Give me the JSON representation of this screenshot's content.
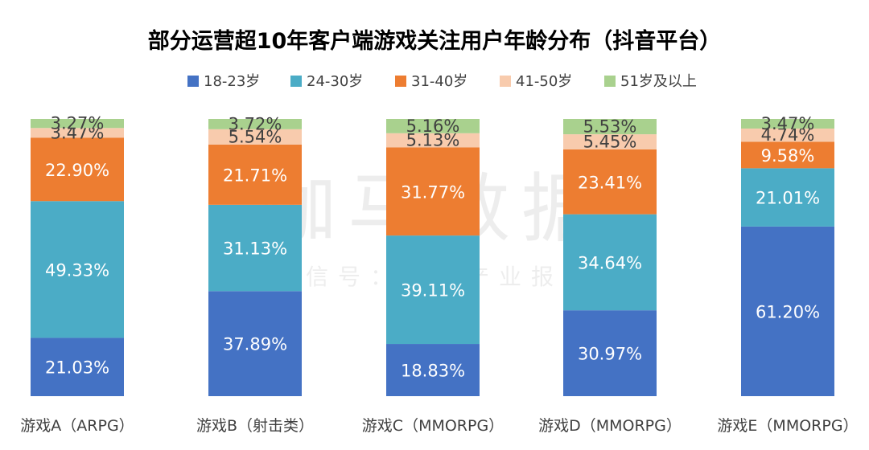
{
  "chart_data": {
    "type": "bar",
    "stacked": true,
    "normalized": true,
    "title": "部分运营超10年客户端游戏关注用户年龄分布（抖音平台）",
    "watermark": {
      "main": "伽马数据",
      "sub": "微信号：游戏产业报告"
    },
    "legend_position": "top",
    "categories": [
      "游戏A（ARPG）",
      "游戏B（射击类）",
      "游戏C（MMORPG）",
      "游戏D（MMORPG）",
      "游戏E（MMORPG）"
    ],
    "series": [
      {
        "name": "18-23岁",
        "color": "#4472C4",
        "values": [
          21.03,
          37.89,
          18.83,
          30.97,
          61.2
        ],
        "labels": [
          "21.03%",
          "37.89%",
          "18.83%",
          "30.97%",
          "61.20%"
        ],
        "label_color": "#ffffff"
      },
      {
        "name": "24-30岁",
        "color": "#4BACC6",
        "values": [
          49.33,
          31.13,
          39.11,
          34.64,
          21.01
        ],
        "labels": [
          "49.33%",
          "31.13%",
          "39.11%",
          "34.64%",
          "21.01%"
        ],
        "label_color": "#ffffff"
      },
      {
        "name": "31-40岁",
        "color": "#ED7D31",
        "values": [
          22.9,
          21.71,
          31.77,
          23.41,
          9.58
        ],
        "labels": [
          "22.90%",
          "21.71%",
          "31.77%",
          "23.41%",
          "9.58%"
        ],
        "label_color": "#ffffff"
      },
      {
        "name": "41-50岁",
        "color": "#F8CBAD",
        "values": [
          3.47,
          5.54,
          5.13,
          5.45,
          4.74
        ],
        "labels": [
          "3.47%",
          "5.54%",
          "5.13%",
          "5.45%",
          "4.74%"
        ],
        "label_color": "#404040"
      },
      {
        "name": "51岁及以上",
        "color": "#A9D18E",
        "values": [
          3.27,
          3.72,
          5.16,
          5.53,
          3.47
        ],
        "labels": [
          "3.27%",
          "3.72%",
          "5.16%",
          "5.53%",
          "3.47%"
        ],
        "label_color": "#404040"
      }
    ],
    "ylim": [
      0,
      100
    ],
    "grid": false
  }
}
